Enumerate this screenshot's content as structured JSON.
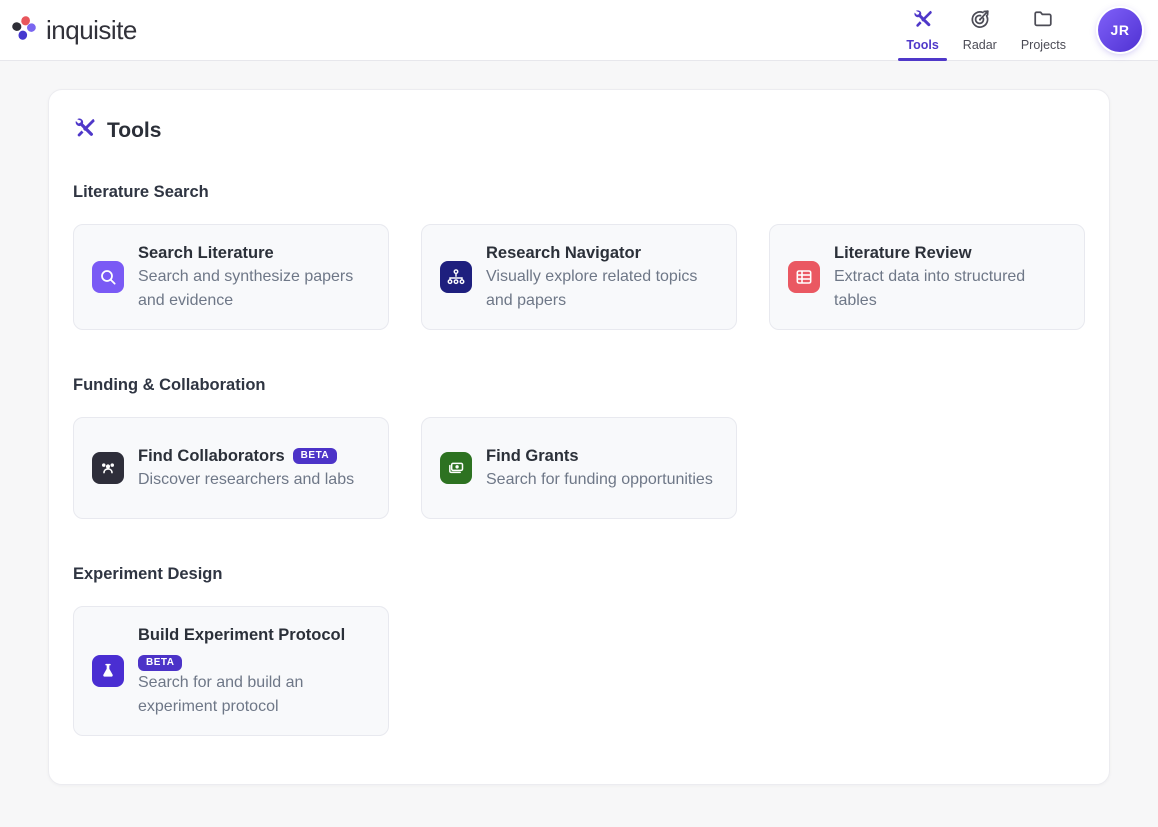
{
  "brand": {
    "name": "inquisite"
  },
  "nav": {
    "items": [
      {
        "label": "Tools",
        "icon": "tools-icon",
        "active": true
      },
      {
        "label": "Radar",
        "icon": "radar-icon",
        "active": false
      },
      {
        "label": "Projects",
        "icon": "folder-icon",
        "active": false
      }
    ],
    "avatar_initials": "JR"
  },
  "page": {
    "title": "Tools"
  },
  "badges": {
    "beta_label": "BETA",
    "beta_color": "#4c33c8"
  },
  "colors": {
    "accent": "#4f38c9",
    "logo_petals": [
      "#e8565c",
      "#2e2e36",
      "#7a66f0",
      "#4638cf"
    ]
  },
  "sections": [
    {
      "title": "Literature Search",
      "tools": [
        {
          "title": "Search Literature",
          "description": "Search and synthesize papers and evidence",
          "icon": "search-icon",
          "color": "#7a5af5",
          "beta": false
        },
        {
          "title": "Research Navigator",
          "description": "Visually explore related topics and papers",
          "icon": "sitemap-icon",
          "color": "#1e1f7e",
          "beta": false
        },
        {
          "title": "Literature Review",
          "description": "Extract data into structured tables",
          "icon": "table-icon",
          "color": "#ea5862",
          "beta": false
        }
      ]
    },
    {
      "title": "Funding & Collaboration",
      "tools": [
        {
          "title": "Find Collaborators",
          "description": "Discover researchers and labs",
          "icon": "users-icon",
          "color": "#2e2e3a",
          "beta": true
        },
        {
          "title": "Find Grants",
          "description": "Search for funding opportunities",
          "icon": "money-icon",
          "color": "#2d7221",
          "beta": false
        }
      ]
    },
    {
      "title": "Experiment Design",
      "tools": [
        {
          "title": "Build Experiment Protocol",
          "description": "Search for and build an experiment protocol",
          "icon": "flask-icon",
          "color": "#4a2ed2",
          "beta": true
        }
      ]
    }
  ]
}
